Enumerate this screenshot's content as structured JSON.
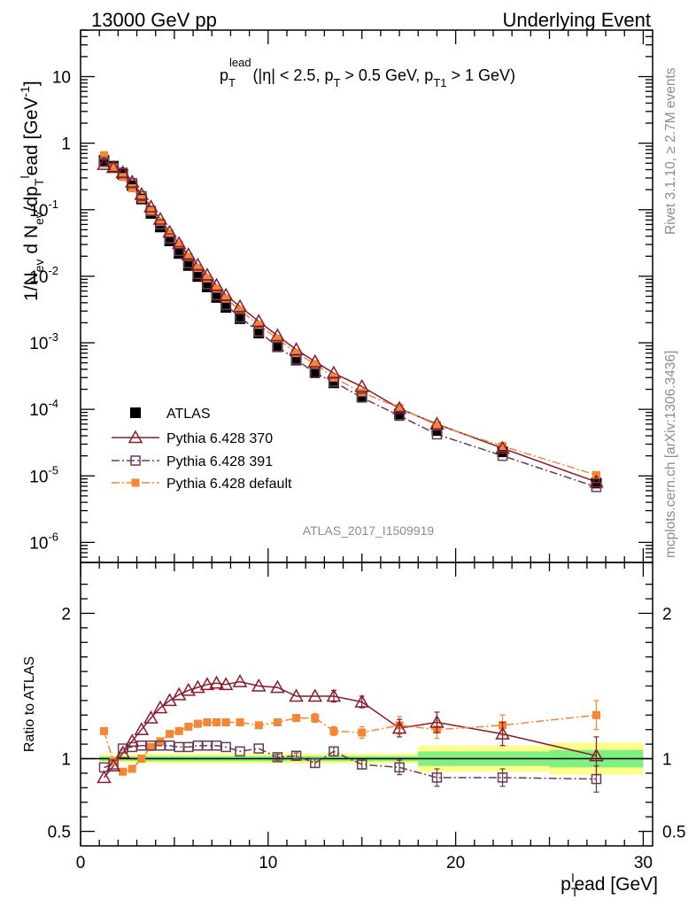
{
  "header": {
    "left_title": "13000 GeV pp",
    "right_title": "Underlying Event"
  },
  "side_labels": {
    "rivet": "Rivet 3.1.10, ≥ 2.7M events",
    "mcplots": "mcplots.cern.ch [arXiv:1306.3436]"
  },
  "chart_data": [
    {
      "panel": "main",
      "type": "scatter",
      "title_parts": {
        "main": "p",
        "sub": "T",
        "sup": "lead",
        "cut_text": "(|η| < 2.5, p",
        "cut_sub1": "T",
        "cut_mid": " > 0.5 GeV, p",
        "cut_sub2": "T1",
        "cut_end": " > 1 GeV)"
      },
      "ylabel": "1/N_ev d N_ev/dp_T^lead [GeV^-1]",
      "ylabel_parts": [
        "1/N",
        "ev",
        " d N",
        "ev",
        "/dp",
        "T",
        "l",
        "ead [GeV",
        "-1",
        "]"
      ],
      "yscale": "log",
      "ylim": [
        5e-07,
        50
      ],
      "xlim": [
        0,
        30.5
      ],
      "y_ticks": [
        {
          "v": 10,
          "mant": "10",
          "exp": ""
        },
        {
          "v": 1,
          "mant": "1",
          "exp": ""
        },
        {
          "v": 0.1,
          "mant": "10",
          "exp": "-1"
        },
        {
          "v": 0.01,
          "mant": "10",
          "exp": "-2"
        },
        {
          "v": 0.001,
          "mant": "10",
          "exp": "-3"
        },
        {
          "v": 0.0001,
          "mant": "10",
          "exp": "-4"
        },
        {
          "v": 1e-05,
          "mant": "10",
          "exp": "-5"
        },
        {
          "v": 1e-06,
          "mant": "10",
          "exp": "-6"
        }
      ],
      "watermark": "ATLAS_2017_I1509919",
      "x": [
        1.25,
        1.75,
        2.25,
        2.75,
        3.25,
        3.75,
        4.25,
        4.75,
        5.25,
        5.75,
        6.25,
        6.75,
        7.25,
        7.75,
        8.5,
        9.5,
        10.5,
        11.5,
        12.5,
        13.5,
        15.0,
        17.0,
        19.0,
        22.5,
        27.5
      ],
      "legend": {
        "position": "bottom-left",
        "entries": [
          "ATLAS",
          "Pythia 6.428 370",
          "Pythia 6.428 391",
          "Pythia 6.428 default"
        ]
      },
      "series": [
        {
          "name": "ATLAS",
          "color": "#000000",
          "marker": "filled-square",
          "line": "none",
          "values": [
            0.55,
            0.45,
            0.34,
            0.23,
            0.145,
            0.088,
            0.055,
            0.034,
            0.022,
            0.0145,
            0.0099,
            0.0069,
            0.0048,
            0.0034,
            0.0023,
            0.0014,
            0.00087,
            0.00055,
            0.00036,
            0.00025,
            0.000155,
            8.5e-05,
            4.8e-05,
            2.3e-05,
            7.8e-06
          ]
        },
        {
          "name": "Pythia 6.428 370",
          "color": "#8b1a2b",
          "marker": "open-triangle",
          "line": "solid",
          "values": [
            0.48,
            0.43,
            0.36,
            0.26,
            0.17,
            0.11,
            0.072,
            0.046,
            0.031,
            0.021,
            0.0147,
            0.0104,
            0.0073,
            0.0052,
            0.0035,
            0.0021,
            0.00128,
            0.00079,
            0.00052,
            0.00035,
            0.00022,
            0.000103,
            6e-05,
            2.6e-05,
            8.1e-06
          ]
        },
        {
          "name": "Pythia 6.428 391",
          "color": "#6b3a55",
          "marker": "open-square",
          "line": "dash-dot",
          "values": [
            0.52,
            0.43,
            0.36,
            0.25,
            0.16,
            0.096,
            0.06,
            0.037,
            0.024,
            0.0157,
            0.0108,
            0.0076,
            0.0052,
            0.0037,
            0.0024,
            0.00148,
            0.00087,
            0.00056,
            0.00035,
            0.00026,
            0.00015,
            8e-05,
            4.2e-05,
            2e-05,
            6.8e-06
          ]
        },
        {
          "name": "Pythia 6.428 default",
          "color": "#f58634",
          "marker": "filled-square-small",
          "line": "dash-dot",
          "values": [
            0.66,
            0.44,
            0.31,
            0.21,
            0.145,
            0.095,
            0.066,
            0.044,
            0.03,
            0.0195,
            0.0133,
            0.0093,
            0.0065,
            0.0046,
            0.0031,
            0.00186,
            0.00115,
            0.0007,
            0.00048,
            0.0003,
            0.00018,
            0.000105,
            5.8e-05,
            2.8e-05,
            1.03e-05
          ]
        }
      ]
    },
    {
      "panel": "ratio",
      "type": "line",
      "ylabel": "Ratio to ATLAS",
      "xlabel_parts": [
        "p",
        "T",
        "l",
        "ead [GeV]"
      ],
      "ylim": [
        0.4,
        2.35
      ],
      "xlim": [
        0,
        30.5
      ],
      "y_ticks": [
        {
          "v": 2,
          "label": "2"
        },
        {
          "v": 1,
          "label": "1"
        },
        {
          "v": 0.5,
          "label": "0.5"
        }
      ],
      "x_ticks": [
        {
          "v": 0,
          "label": "0"
        },
        {
          "v": 10,
          "label": "10"
        },
        {
          "v": 20,
          "label": "20"
        },
        {
          "v": 30,
          "label": "30"
        }
      ],
      "uncertainty_bands": {
        "color_outer": "#ffff8a",
        "color_inner": "#80f080",
        "bins": [
          {
            "lo": 1.0,
            "hi": 3.0,
            "outer": 0.03,
            "inner": 0.015
          },
          {
            "lo": 3.0,
            "hi": 18.0,
            "outer": 0.035,
            "inner": 0.018
          },
          {
            "lo": 18.0,
            "hi": 25.0,
            "outer": 0.09,
            "inner": 0.05
          },
          {
            "lo": 25.0,
            "hi": 30.0,
            "outer": 0.11,
            "inner": 0.06
          }
        ]
      },
      "x": [
        1.25,
        1.75,
        2.25,
        2.75,
        3.25,
        3.75,
        4.25,
        4.75,
        5.25,
        5.75,
        6.25,
        6.75,
        7.25,
        7.75,
        8.5,
        9.5,
        10.5,
        11.5,
        12.5,
        13.5,
        15.0,
        17.0,
        19.0,
        22.5,
        27.5
      ],
      "series": [
        {
          "name": "Pythia 6.428 370",
          "color": "#8b1a2b",
          "marker": "open-triangle",
          "line": "solid",
          "values": [
            0.87,
            0.95,
            1.04,
            1.12,
            1.2,
            1.28,
            1.35,
            1.4,
            1.44,
            1.47,
            1.49,
            1.51,
            1.52,
            1.51,
            1.53,
            1.5,
            1.49,
            1.43,
            1.43,
            1.43,
            1.39,
            1.21,
            1.25,
            1.17,
            1.02
          ],
          "errors": [
            0,
            0,
            0,
            0,
            0,
            0,
            0,
            0,
            0,
            0,
            0,
            0,
            0,
            0,
            0,
            0,
            0,
            0,
            0,
            0.04,
            0.04,
            0.06,
            0.07,
            0.08,
            0.13
          ]
        },
        {
          "name": "Pythia 6.428 391",
          "color": "#6b3a55",
          "marker": "open-square",
          "line": "dash-dot",
          "values": [
            0.94,
            0.96,
            1.07,
            1.08,
            1.09,
            1.09,
            1.09,
            1.09,
            1.08,
            1.08,
            1.09,
            1.09,
            1.09,
            1.08,
            1.05,
            1.07,
            1.01,
            1.02,
            0.97,
            1.05,
            0.96,
            0.94,
            0.87,
            0.87,
            0.86
          ],
          "errors": [
            0,
            0,
            0,
            0,
            0,
            0,
            0,
            0,
            0,
            0,
            0,
            0,
            0,
            0,
            0,
            0,
            0.02,
            0.02,
            0.03,
            0.03,
            0.03,
            0.05,
            0.06,
            0.06,
            0.09
          ]
        },
        {
          "name": "Pythia 6.428 default",
          "color": "#f58634",
          "marker": "filled-square-small",
          "line": "dash-dot",
          "values": [
            1.19,
            0.98,
            0.91,
            0.93,
            1.0,
            1.08,
            1.12,
            1.17,
            1.19,
            1.22,
            1.24,
            1.25,
            1.25,
            1.25,
            1.25,
            1.23,
            1.25,
            1.28,
            1.28,
            1.19,
            1.18,
            1.23,
            1.2,
            1.23,
            1.3
          ],
          "errors": [
            0,
            0,
            0,
            0,
            0,
            0,
            0,
            0,
            0,
            0,
            0,
            0,
            0,
            0,
            0,
            0,
            0.02,
            0.02,
            0.03,
            0.03,
            0.04,
            0.06,
            0.06,
            0.07,
            0.1
          ]
        }
      ]
    }
  ]
}
